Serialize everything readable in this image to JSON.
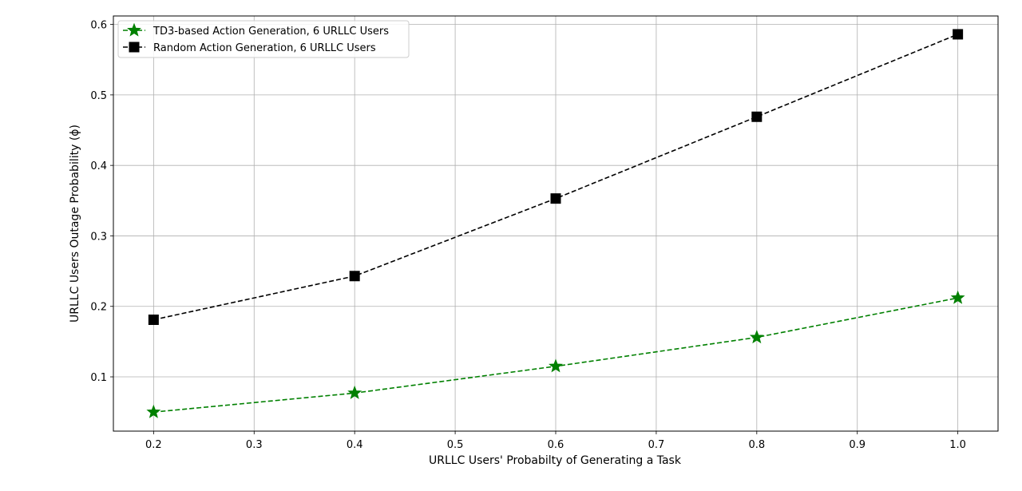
{
  "chart_data": {
    "type": "line",
    "title": "",
    "xlabel": "URLLC Users' Probabilty of Generating a Task",
    "ylabel": "URLLC Users Outage Probability (ϕ)",
    "xlim": [
      0.16,
      1.04
    ],
    "ylim": [
      0.023,
      0.612
    ],
    "xticks": [
      0.2,
      0.3,
      0.4,
      0.5,
      0.6,
      0.7,
      0.8,
      0.9,
      1.0
    ],
    "xtick_labels": [
      "0.2",
      "0.3",
      "0.4",
      "0.5",
      "0.6",
      "0.7",
      "0.8",
      "0.9",
      "1.0"
    ],
    "yticks": [
      0.1,
      0.2,
      0.3,
      0.4,
      0.5,
      0.6
    ],
    "ytick_labels": [
      "0.1",
      "0.2",
      "0.3",
      "0.4",
      "0.5",
      "0.6"
    ],
    "grid": true,
    "legend_position": "upper-left",
    "x": [
      0.2,
      0.4,
      0.6,
      0.8,
      1.0
    ],
    "series": [
      {
        "name": "TD3-based Action Generation, 6 URLLC Users",
        "values": [
          0.05,
          0.077,
          0.115,
          0.156,
          0.212
        ],
        "color": "#008000",
        "marker": "star",
        "line_style": "dashed"
      },
      {
        "name": "Random Action Generation, 6 URLLC Users",
        "values": [
          0.181,
          0.243,
          0.353,
          0.469,
          0.586
        ],
        "color": "#000000",
        "marker": "square",
        "line_style": "dashed"
      }
    ]
  }
}
